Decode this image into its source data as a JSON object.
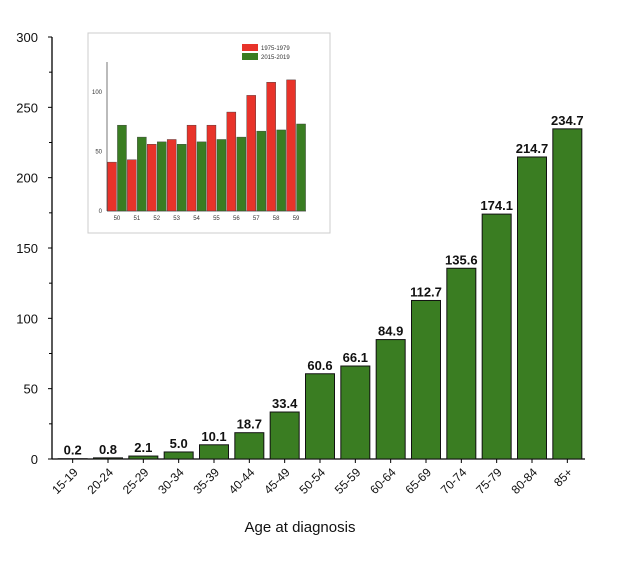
{
  "chart_data": [
    {
      "type": "bar",
      "title": "",
      "xlabel": "Age at diagnosis",
      "ylabel": "",
      "ylim": [
        0,
        300
      ],
      "yticks": [
        0,
        50,
        100,
        150,
        200,
        250,
        300
      ],
      "categories": [
        "15-19",
        "20-24",
        "25-29",
        "30-34",
        "35-39",
        "40-44",
        "45-49",
        "50-54",
        "55-59",
        "60-64",
        "65-69",
        "70-74",
        "75-79",
        "80-84",
        "85+"
      ],
      "values": [
        0.2,
        0.8,
        2.1,
        5.0,
        10.1,
        18.7,
        33.4,
        60.6,
        66.1,
        84.9,
        112.7,
        135.6,
        174.1,
        214.7,
        234.7
      ],
      "data_labels": [
        "0.2",
        "0.8",
        "2.1",
        "5.0",
        "10.1",
        "18.7",
        "33.4",
        "60.6",
        "66.1",
        "84.9",
        "112.7",
        "135.6",
        "174.1",
        "214.7",
        "234.7"
      ],
      "color": "#3a7d22",
      "grid": false
    },
    {
      "type": "bar",
      "title": "",
      "xlabel": "",
      "ylabel": "",
      "ylim": [
        0,
        125
      ],
      "yticks": [
        0,
        50,
        100
      ],
      "categories": [
        "50",
        "51",
        "52",
        "53",
        "54",
        "55",
        "56",
        "57",
        "58",
        "59"
      ],
      "series": [
        {
          "name": "1975-1979",
          "color": "#e8332a",
          "values": [
            41,
            43,
            56,
            60,
            72,
            72,
            83,
            97,
            108,
            110
          ]
        },
        {
          "name": "2015-2019",
          "color": "#3a7d22",
          "values": [
            72,
            62,
            58,
            56,
            58,
            60,
            62,
            67,
            68,
            73
          ]
        }
      ],
      "legend": "top-right",
      "grid": false
    }
  ]
}
